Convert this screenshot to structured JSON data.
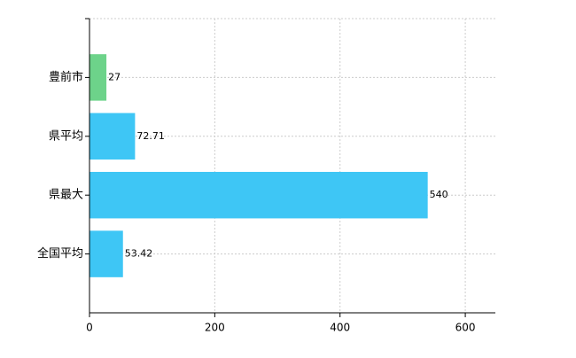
{
  "chart_data": {
    "type": "barh",
    "categories": [
      "豊前市",
      "県平均",
      "県最大",
      "全国平均"
    ],
    "values": [
      27,
      72.71,
      540,
      53.42
    ],
    "colors": [
      "#6dd38a",
      "#3ec6f5",
      "#3ec6f5",
      "#3ec6f5"
    ],
    "xlim": [
      0,
      648
    ],
    "xticks": [
      0,
      200,
      400,
      600
    ],
    "grid": true
  }
}
